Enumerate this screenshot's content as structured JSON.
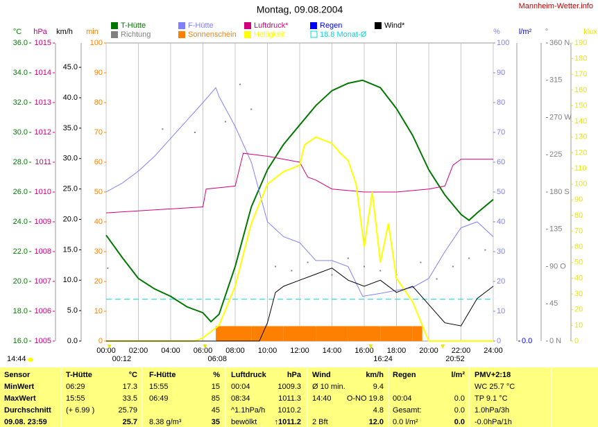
{
  "chart_data": {
    "type": "line",
    "title": "Montag, 09.08.2004",
    "site": "Mannheim-Wetter.info",
    "status_time": "14:44",
    "xlim": [
      0,
      24
    ],
    "xticks": [
      {
        "value": 0,
        "label": "00:00"
      },
      {
        "value": 2,
        "label": "02:00"
      },
      {
        "value": 4,
        "label": "04:00"
      },
      {
        "value": 6,
        "label": "06:00"
      },
      {
        "value": 8,
        "label": "08:00"
      },
      {
        "value": 10,
        "label": "10:00"
      },
      {
        "value": 12,
        "label": "12:00"
      },
      {
        "value": 14,
        "label": "14:00"
      },
      {
        "value": 16,
        "label": "16:00"
      },
      {
        "value": 18,
        "label": "18:00"
      },
      {
        "value": 20,
        "label": "20:00"
      },
      {
        "value": 22,
        "label": "22:00"
      },
      {
        "value": 24,
        "label": "24:00"
      }
    ],
    "grid": true,
    "axes": [
      {
        "unit": "°C",
        "color": "#008000",
        "lim": [
          16,
          36
        ],
        "ticks": [
          {
            "value": 16,
            "label": "16.0"
          },
          {
            "value": 18,
            "label": "18.0"
          },
          {
            "value": 20,
            "label": "20.0"
          },
          {
            "value": 22,
            "label": "22.0"
          },
          {
            "value": 24,
            "label": "24.0"
          },
          {
            "value": 26,
            "label": "26.0"
          },
          {
            "value": 28,
            "label": "28.0"
          },
          {
            "value": 30,
            "label": "30.0"
          },
          {
            "value": 32,
            "label": "32.0"
          },
          {
            "value": 34,
            "label": "34.0"
          },
          {
            "value": 36,
            "label": "36.0"
          }
        ]
      },
      {
        "unit": "hPa",
        "color": "#c8007c",
        "lim": [
          1005,
          1015
        ],
        "ticks": [
          1005,
          1006,
          1007,
          1008,
          1009,
          1010,
          1011,
          1012,
          1013,
          1014,
          1015
        ]
      },
      {
        "unit": "km/h",
        "color": "#000000",
        "lim": [
          0,
          49
        ],
        "ticks": [
          {
            "value": 0,
            "label": "0.0"
          },
          {
            "value": 5,
            "label": "5.0"
          },
          {
            "value": 10,
            "label": "10.0"
          },
          {
            "value": 15,
            "label": "15.0"
          },
          {
            "value": 20,
            "label": "20.0"
          },
          {
            "value": 25,
            "label": "25.0"
          },
          {
            "value": 30,
            "label": "30.0"
          },
          {
            "value": 35,
            "label": "35.0"
          },
          {
            "value": 40,
            "label": "40.0"
          },
          {
            "value": 45,
            "label": "45.0"
          }
        ]
      },
      {
        "unit": "min",
        "color": "#ff8000",
        "lim": [
          0,
          100
        ],
        "ticks": [
          0,
          10,
          20,
          30,
          40,
          50,
          60,
          70,
          80,
          90,
          100
        ]
      },
      {
        "unit": "%",
        "color": "#8080ff",
        "lim": [
          0,
          100
        ],
        "ticks": [
          0,
          10,
          20,
          30,
          40,
          50,
          60,
          70,
          80,
          90,
          100
        ]
      },
      {
        "unit": "l/m²",
        "color": "#0000ff",
        "lim": [
          0,
          10
        ],
        "ticks": [
          {
            "value": 0,
            "label": "0.0"
          }
        ]
      },
      {
        "unit": "°",
        "color": "#808080",
        "lim": [
          0,
          360
        ],
        "ticks": [
          {
            "value": 0,
            "label": "0 N"
          },
          45,
          {
            "value": 90,
            "label": "90 O"
          },
          135,
          {
            "value": 180,
            "label": "180 S"
          },
          225,
          {
            "value": 270,
            "label": "270 W"
          },
          315,
          {
            "value": 360,
            "label": "360 N"
          }
        ]
      },
      {
        "unit": "klux",
        "color": "#e8e800",
        "lim": [
          0,
          190
        ],
        "ticks": [
          0,
          10,
          20,
          30,
          40,
          50,
          60,
          70,
          80,
          90,
          100,
          110,
          120,
          130,
          140,
          150,
          160,
          170,
          180,
          190
        ]
      }
    ],
    "series": [
      {
        "name": "T-Hütte",
        "color": "#007800",
        "kind": "line",
        "axis": 0,
        "width": 2,
        "x": [
          0,
          1,
          2,
          3,
          4,
          5,
          6,
          6.5,
          7,
          8,
          9,
          10,
          11,
          12,
          13,
          14,
          15,
          15.9,
          17,
          18,
          19,
          20,
          21,
          22,
          22.5,
          23,
          24
        ],
        "values": [
          23.1,
          21.6,
          20.2,
          19.5,
          19.0,
          18.3,
          17.9,
          17.3,
          17.8,
          21,
          25,
          27.5,
          29.2,
          30.5,
          31.8,
          32.8,
          33.3,
          33.5,
          33.0,
          31.6,
          29.8,
          27.5,
          25.8,
          24.5,
          24.1,
          24.6,
          25.5
        ]
      },
      {
        "name": "Richtung",
        "color": "#808080",
        "kind": "dots",
        "axis": 6,
        "x": [
          0.1,
          3.5,
          5.5,
          7.4,
          8.3,
          9.0,
          10.5,
          11.5,
          12.5,
          14,
          15,
          16,
          17,
          18,
          19.5,
          20.5,
          21.5,
          22.5,
          23.5
        ],
        "values": [
          88,
          256,
          252,
          265,
          310,
          280,
          90,
          85,
          95,
          80,
          100,
          90,
          85,
          80,
          95,
          75,
          90,
          100,
          110
        ]
      },
      {
        "name": "F-Hütte",
        "color": "#8080ff",
        "kind": "line",
        "axis": 4,
        "width": 1,
        "x": [
          0,
          1,
          2,
          3,
          4,
          5,
          6,
          6.8,
          7,
          8,
          9,
          10,
          11,
          12,
          13,
          14,
          15,
          15.9,
          17,
          18,
          19,
          20,
          21,
          22,
          23,
          24
        ],
        "values": [
          50,
          53,
          57,
          62,
          68,
          74,
          80,
          85,
          82,
          72,
          60,
          40,
          35,
          33,
          27,
          27,
          25,
          15,
          16,
          17,
          18,
          21,
          30,
          38,
          40,
          35
        ]
      },
      {
        "name": "Sonnenschein",
        "color": "#ff8000",
        "kind": "bars",
        "axis": 3,
        "bins": [
          6.8,
          8,
          9,
          10,
          11,
          12,
          13,
          14,
          15,
          16,
          17,
          18,
          19,
          19.6
        ],
        "values": [
          5,
          5,
          5,
          5,
          5,
          5,
          5,
          5,
          5,
          5,
          5,
          5,
          5
        ]
      },
      {
        "name": "Luftdruck*",
        "color": "#d0007c",
        "kind": "line",
        "axis": 1,
        "width": 1,
        "x": [
          0,
          3,
          6,
          6.2,
          8,
          8.5,
          10,
          12,
          12.5,
          13,
          14,
          16,
          18,
          20,
          21,
          21.5,
          22,
          24
        ],
        "values": [
          1009.3,
          1009.4,
          1009.5,
          1010.1,
          1010.2,
          1011.3,
          1011.2,
          1011.0,
          1010.5,
          1010.4,
          1010.1,
          1010.0,
          1010.0,
          1010.1,
          1010.2,
          1010.9,
          1011.1,
          1011.1
        ]
      },
      {
        "name": "Helligkeit",
        "color": "#ffff00",
        "kind": "line",
        "axis": 7,
        "width": 2,
        "x": [
          0,
          5.5,
          6,
          7,
          8,
          9,
          10,
          11,
          12,
          12.3,
          13,
          13.5,
          14,
          14.5,
          15,
          15.5,
          16,
          16.5,
          17,
          17.5,
          18,
          19,
          19.8,
          20,
          24
        ],
        "values": [
          0,
          0,
          2,
          10,
          35,
          75,
          100,
          108,
          112,
          125,
          130,
          128,
          126,
          120,
          115,
          100,
          60,
          95,
          50,
          75,
          40,
          25,
          5,
          0,
          0
        ]
      },
      {
        "name": "Regen",
        "color": "#0000ff",
        "kind": "line",
        "axis": 5,
        "width": 1,
        "x": [],
        "values": []
      },
      {
        "name": "Wind*",
        "color": "#000000",
        "kind": "line",
        "axis": 2,
        "width": 1,
        "x": [
          0,
          9.5,
          10,
          10.5,
          11,
          12,
          13,
          14,
          15,
          16,
          17,
          18,
          19,
          20,
          21,
          22,
          23,
          24
        ],
        "values": [
          0,
          0,
          3,
          8,
          9,
          10,
          11,
          12,
          10,
          9,
          10,
          8,
          9,
          6,
          3,
          2.5,
          7,
          9
        ]
      }
    ],
    "reference": {
      "name": "18.8 Monat-Ø",
      "value": 18.8,
      "axis": 0,
      "color": "#00d8d8"
    },
    "markers": [
      {
        "x": 0.2,
        "label": "00:12"
      },
      {
        "x": 6.13,
        "label": "06:08"
      },
      {
        "x": 16.4,
        "label": "16:24"
      },
      {
        "x": 20.87,
        "label": "20:52"
      }
    ]
  },
  "table": {
    "header": [
      [
        "Sensor"
      ],
      [
        "T-Hütte",
        "°C"
      ],
      [
        "F-Hütte",
        "%"
      ],
      [
        "Luftdruck",
        "hPa"
      ],
      [
        "Wind",
        "km/h"
      ],
      [
        "Regen",
        "l/m²"
      ],
      [
        "PMV+2:18"
      ]
    ],
    "rows": [
      [
        [
          "MinWert"
        ],
        [
          "06:29",
          "17.3"
        ],
        [
          "15:55",
          "15"
        ],
        [
          "00:04",
          "1009.3"
        ],
        [
          "Ø 10 min.",
          "9.4"
        ],
        [],
        [
          "WC 25.7 °C"
        ]
      ],
      [
        [
          "MaxWert"
        ],
        [
          "15:55",
          "33.5"
        ],
        [
          "06:49",
          "85"
        ],
        [
          "08:34",
          "1011.3"
        ],
        [
          "14:40",
          "O-NO 19.8"
        ],
        [
          "00:04",
          "0.0"
        ],
        [
          "TP 9.1 °C"
        ]
      ],
      [
        [
          "Durchschnitt"
        ],
        [
          "(+ 6.99 )",
          "25.79"
        ],
        [
          "45"
        ],
        [
          "^1.1hPa/h",
          "1010.2"
        ],
        [
          "4.8"
        ],
        [
          "Gesamt:",
          "0.0"
        ],
        [
          "1.0hPa/3h"
        ]
      ],
      [
        [
          "09.08. 23:59"
        ],
        [
          "25.7"
        ],
        [
          "8.38 g/m³",
          "35"
        ],
        [
          "bewölkt",
          "↑1011.2"
        ],
        [
          "2 Bft",
          "12.0"
        ],
        [
          "0.0 l/m²",
          "0.0"
        ],
        [
          "-0.0hPa/1h"
        ]
      ]
    ]
  }
}
